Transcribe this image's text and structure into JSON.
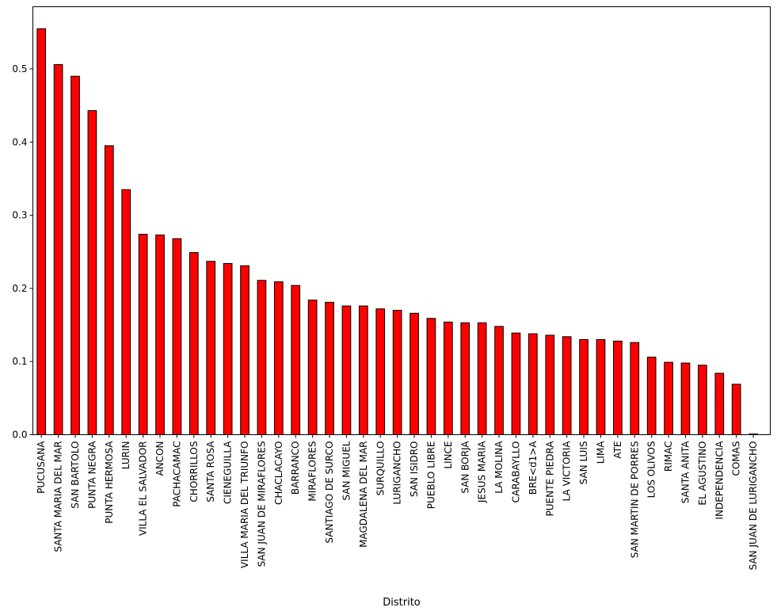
{
  "chart_data": {
    "type": "bar",
    "title": "",
    "xlabel": "Distrito",
    "ylabel": "",
    "ylim": [
      0,
      0.585
    ],
    "yticks": [
      0.0,
      0.1,
      0.2,
      0.3,
      0.4,
      0.5
    ],
    "ytick_labels": [
      "0.0",
      "0.1",
      "0.2",
      "0.3",
      "0.4",
      "0.5"
    ],
    "grid": false,
    "legend": "none",
    "bar_color": "#ff0000",
    "edge_color": "#000000",
    "categories": [
      "PUCUSANA",
      "SANTA MARIA DEL MAR",
      "SAN BARTOLO",
      "PUNTA NEGRA",
      "PUNTA HERMOSA",
      "LURIN",
      "VILLA EL SALVADOR",
      "ANCON",
      "PACHACAMAC",
      "CHORRILLOS",
      "SANTA ROSA",
      "CIENEGUILLA",
      "VILLA MARIA DEL TRIUNFO",
      "SAN JUAN DE MIRAFLORES",
      "CHACLACAYO",
      "BARRANCO",
      "MIRAFLORES",
      "SANTIAGO DE SURCO",
      "SAN MIGUEL",
      "MAGDALENA DEL MAR",
      "SURQUILLO",
      "LURIGANCHO",
      "SAN ISIDRO",
      "PUEBLO LIBRE",
      "LINCE",
      "SAN BORJA",
      "JESUS MARIA",
      "LA MOLINA",
      "CARABAYLLO",
      "BRE<d1>A",
      "PUENTE PIEDRA",
      "LA VICTORIA",
      "SAN LUIS",
      "LIMA",
      "ATE",
      "SAN MARTIN DE PORRES",
      "LOS OLIVOS",
      "RIMAC",
      "SANTA ANITA",
      "EL AGUSTINO",
      "INDEPENDENCIA",
      "COMAS",
      "SAN JUAN DE LURIGANCHO"
    ],
    "values": [
      0.555,
      0.506,
      0.49,
      0.443,
      0.395,
      0.335,
      0.274,
      0.273,
      0.268,
      0.249,
      0.237,
      0.234,
      0.231,
      0.211,
      0.209,
      0.204,
      0.184,
      0.181,
      0.176,
      0.176,
      0.172,
      0.17,
      0.166,
      0.159,
      0.154,
      0.153,
      0.153,
      0.148,
      0.139,
      0.138,
      0.136,
      0.134,
      0.13,
      0.13,
      0.128,
      0.126,
      0.106,
      0.099,
      0.098,
      0.095,
      0.084,
      0.069,
      0.001
    ]
  }
}
